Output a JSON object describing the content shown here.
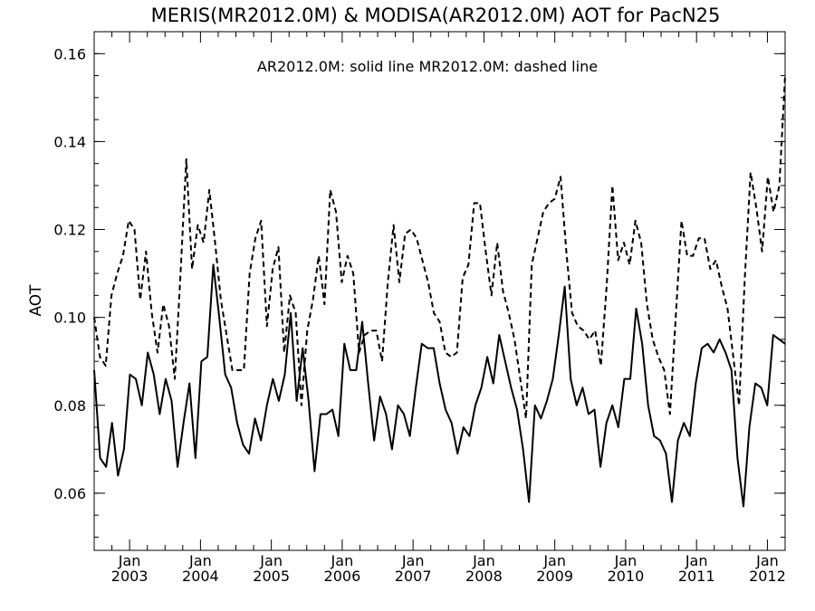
{
  "chart_data": {
    "type": "line",
    "title": "MERIS(MR2012.0M) & MODISA(AR2012.0M)  AOT for PacN25",
    "annotation": "AR2012.0M: solid line   MR2012.0M: dashed line",
    "xlabel": "",
    "ylabel": "AOT",
    "x_start": "2002-07",
    "x_end": "2012-04",
    "xlim": [
      "2002-07",
      "2012-04"
    ],
    "ylim": [
      0.047,
      0.165
    ],
    "y_ticks": [
      0.06,
      0.08,
      0.1,
      0.12,
      0.14,
      0.16
    ],
    "y_tick_labels": [
      "0.06",
      "0.08",
      "0.10",
      "0.12",
      "0.14",
      "0.16"
    ],
    "x_ticks": [
      {
        "date": "2003-01",
        "month": "Jan",
        "year": "2003"
      },
      {
        "date": "2004-01",
        "month": "Jan",
        "year": "2004"
      },
      {
        "date": "2005-01",
        "month": "Jan",
        "year": "2005"
      },
      {
        "date": "2006-01",
        "month": "Jan",
        "year": "2006"
      },
      {
        "date": "2007-01",
        "month": "Jan",
        "year": "2007"
      },
      {
        "date": "2008-01",
        "month": "Jan",
        "year": "2008"
      },
      {
        "date": "2009-01",
        "month": "Jan",
        "year": "2009"
      },
      {
        "date": "2010-01",
        "month": "Jan",
        "year": "2010"
      },
      {
        "date": "2011-01",
        "month": "Jan",
        "year": "2011"
      },
      {
        "date": "2012-01",
        "month": "Jan",
        "year": "2012"
      }
    ],
    "grid": false,
    "series": [
      {
        "style": "dashed",
        "color": "#000000",
        "values": [
          0.1,
          0.091,
          0.089,
          0.105,
          0.11,
          0.114,
          0.122,
          0.12,
          0.104,
          0.115,
          0.101,
          0.092,
          0.103,
          0.098,
          0.086,
          0.11,
          0.136,
          0.111,
          0.121,
          0.117,
          0.129,
          0.117,
          0.104,
          0.096,
          0.088,
          0.088,
          0.088,
          0.11,
          0.118,
          0.122,
          0.098,
          0.111,
          0.116,
          0.092,
          0.105,
          0.101,
          0.08,
          0.097,
          0.104,
          0.114,
          0.103,
          0.129,
          0.124,
          0.108,
          0.114,
          0.11,
          0.092,
          0.096,
          0.097,
          0.097,
          0.09,
          0.108,
          0.121,
          0.108,
          0.119,
          0.12,
          0.118,
          0.113,
          0.108,
          0.101,
          0.099,
          0.092,
          0.091,
          0.092,
          0.109,
          0.112,
          0.126,
          0.126,
          0.115,
          0.105,
          0.117,
          0.106,
          0.101,
          0.095,
          0.086,
          0.077,
          0.112,
          0.118,
          0.124,
          0.126,
          0.127,
          0.132,
          0.115,
          0.101,
          0.098,
          0.097,
          0.095,
          0.097,
          0.089,
          0.107,
          0.13,
          0.113,
          0.117,
          0.112,
          0.122,
          0.117,
          0.103,
          0.095,
          0.091,
          0.088,
          0.078,
          0.1,
          0.122,
          0.114,
          0.114,
          0.118,
          0.118,
          0.111,
          0.113,
          0.107,
          0.102,
          0.091,
          0.08,
          0.109,
          0.133,
          0.125,
          0.115,
          0.132,
          0.124,
          0.13,
          0.155
        ]
      },
      {
        "style": "solid",
        "color": "#000000",
        "values": [
          0.088,
          0.068,
          0.066,
          0.076,
          0.064,
          0.07,
          0.087,
          0.086,
          0.08,
          0.092,
          0.087,
          0.078,
          0.086,
          0.081,
          0.066,
          0.076,
          0.085,
          0.068,
          0.09,
          0.091,
          0.112,
          0.1,
          0.087,
          0.084,
          0.076,
          0.071,
          0.069,
          0.077,
          0.072,
          0.08,
          0.086,
          0.081,
          0.087,
          0.101,
          0.081,
          0.093,
          0.081,
          0.065,
          0.078,
          0.078,
          0.079,
          0.073,
          0.094,
          0.088,
          0.088,
          0.099,
          0.085,
          0.072,
          0.082,
          0.078,
          0.07,
          0.08,
          0.078,
          0.073,
          0.084,
          0.094,
          0.093,
          0.093,
          0.085,
          0.079,
          0.076,
          0.069,
          0.075,
          0.073,
          0.08,
          0.084,
          0.091,
          0.085,
          0.096,
          0.09,
          0.084,
          0.079,
          0.07,
          0.058,
          0.08,
          0.077,
          0.081,
          0.086,
          0.096,
          0.107,
          0.086,
          0.08,
          0.084,
          0.078,
          0.079,
          0.066,
          0.076,
          0.08,
          0.075,
          0.086,
          0.086,
          0.102,
          0.094,
          0.08,
          0.073,
          0.072,
          0.069,
          0.058,
          0.072,
          0.076,
          0.073,
          0.085,
          0.093,
          0.094,
          0.092,
          0.095,
          0.092,
          0.088,
          0.068,
          0.057,
          0.075,
          0.085,
          0.084,
          0.08,
          0.096,
          0.095,
          0.094
        ]
      }
    ]
  }
}
